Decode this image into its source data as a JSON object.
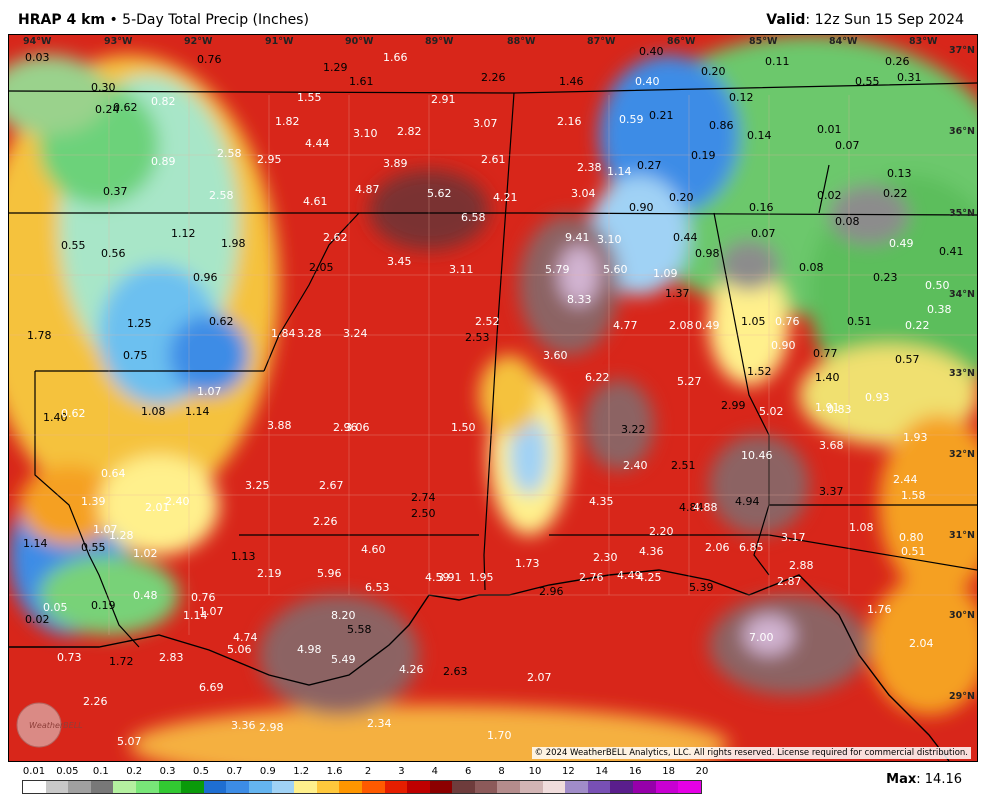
{
  "header": {
    "model": "HRAP 4 km",
    "product": "5-Day Total Precip (Inches)",
    "valid_label": "Valid",
    "valid_time": "12z Sun 15 Sep 2024"
  },
  "map": {
    "longitude_labels": [
      "94°W",
      "93°W",
      "92°W",
      "91°W",
      "90°W",
      "89°W",
      "88°W",
      "87°W",
      "86°W",
      "85°W",
      "84°W",
      "83°W"
    ],
    "latitude_labels": [
      "37°N",
      "36°N",
      "35°N",
      "34°N",
      "33°N",
      "32°N",
      "31°N",
      "30°N",
      "29°N"
    ],
    "watermark": "WeatherBELL",
    "credit": "© 2024 WeatherBELL Analytics, LLC. All rights reserved. License required for commercial distribution.",
    "point_values": [
      "0.03",
      "0.76",
      "1.29",
      "1.66",
      "2.26",
      "0.40",
      "0.20",
      "0.11",
      "0.26",
      "0.31",
      "0.30",
      "1.61",
      "1.46",
      "0.40",
      "0.55",
      "0.24",
      "0.62",
      "0.82",
      "1.55",
      "2.91",
      "0.12",
      "1.82",
      "3.10",
      "2.82",
      "3.07",
      "2.16",
      "0.59",
      "0.21",
      "0.86",
      "0.14",
      "0.01",
      "4.44",
      "0.07",
      "2.58",
      "2.95",
      "0.89",
      "3.89",
      "2.61",
      "2.38",
      "1.14",
      "0.27",
      "0.19",
      "0.13",
      "0.37",
      "4.87",
      "5.62",
      "4.21",
      "3.04",
      "0.20",
      "0.02",
      "0.22",
      "2.58",
      "4.61",
      "0.90",
      "0.16",
      "6.58",
      "0.08",
      "1.12",
      "2.62",
      "9.41",
      "3.10",
      "0.44",
      "0.07",
      "0.49",
      "0.55",
      "1.98",
      "0.56",
      "0.98",
      "0.41",
      "3.45",
      "0.08",
      "2.05",
      "3.11",
      "5.79",
      "5.60",
      "1.09",
      "0.23",
      "0.96",
      "0.50",
      "1.37",
      "0.38",
      "8.33",
      "0.62",
      "2.52",
      "4.77",
      "2.08",
      "0.49",
      "1.05",
      "1.25",
      "3.28",
      "0.76",
      "0.51",
      "0.22",
      "1.84",
      "3.24",
      "2.53",
      "1.78",
      "0.90",
      "0.77",
      "0.57",
      "0.75",
      "3.60",
      "1.40",
      "1.52",
      "6.22",
      "5.27",
      "1.07",
      "0.93",
      "2.99",
      "5.02",
      "1.91",
      "0.83",
      "1.08",
      "1.14",
      "1.40",
      "3.22",
      "0.62",
      "3.88",
      "2.96",
      "3.06",
      "1.50",
      "3.68",
      "1.93",
      "10.46",
      "2.40",
      "2.51",
      "2.44",
      "0.64",
      "3.25",
      "2.67",
      "3.37",
      "1.58",
      "4.35",
      "1.39",
      "2.74",
      "4.94",
      "2.40",
      "2.01",
      "4.84",
      "4.88",
      "2.50",
      "2.26",
      "1.07",
      "1.28",
      "1.08",
      "2.20",
      "3.17",
      "0.80",
      "1.14",
      "0.55",
      "4.60",
      "2.30",
      "4.36",
      "2.06",
      "6.85",
      "0.51",
      "1.02",
      "1.13",
      "1.73",
      "2.88",
      "2.19",
      "5.96",
      "4.59",
      "3.91",
      "1.95",
      "2.76",
      "4.49",
      "4.25",
      "6.53",
      "2.87",
      "0.48",
      "0.76",
      "2.96",
      "5.39",
      "0.05",
      "0.19",
      "8.20",
      "1.07",
      "1.14",
      "1.76",
      "0.02",
      "5.58",
      "7.00",
      "4.74",
      "5.06",
      "4.98",
      "2.04",
      "0.73",
      "1.72",
      "2.83",
      "5.49",
      "4.26",
      "2.63",
      "6.69",
      "2.07",
      "2.26",
      "3.36",
      "2.98",
      "2.34",
      "5.07",
      "1.70"
    ]
  },
  "legend": {
    "labels": [
      "0.01",
      "0.05",
      "0.1",
      "0.2",
      "0.3",
      "0.5",
      "0.7",
      "0.9",
      "1.2",
      "1.6",
      "2",
      "3",
      "4",
      "6",
      "8",
      "10",
      "12",
      "14",
      "16",
      "18",
      "20"
    ],
    "colors": [
      "#ffffff",
      "#c8c8c8",
      "#a0a0a0",
      "#787878",
      "#b4f0a0",
      "#78e678",
      "#32c832",
      "#0a9a0a",
      "#1e6ed2",
      "#3c8ce6",
      "#64b4f0",
      "#a0d2f5",
      "#fff08c",
      "#ffc83c",
      "#ff9600",
      "#ff5a00",
      "#e61e00",
      "#be0000",
      "#8c0000",
      "#6e3c3c",
      "#8c5a5a",
      "#b48c8c",
      "#d2b4b4",
      "#f0dcdc",
      "#a08cc8",
      "#7850b4",
      "#5a1e8c",
      "#9600aa",
      "#c800d2",
      "#e600e6"
    ],
    "max_label": "Max",
    "max_value": "14.16"
  }
}
